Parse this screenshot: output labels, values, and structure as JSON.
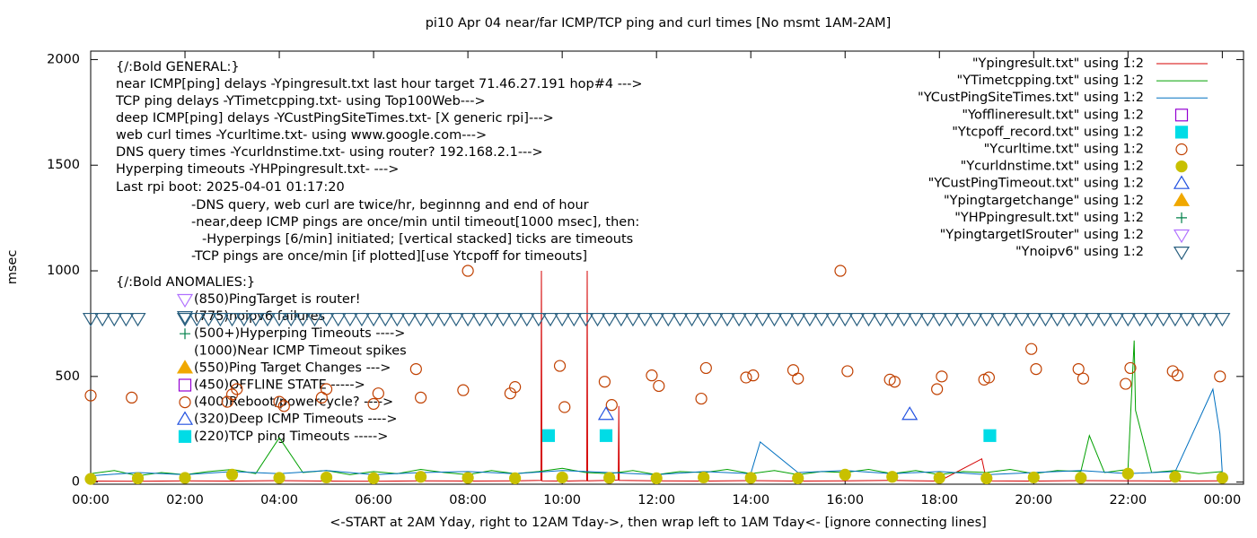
{
  "chart_data": {
    "type": "scatter",
    "title": "pi10 Apr 04  near/far ICMP/TCP ping and curl times [No msmt 1AM-2AM]",
    "x_label": "<-START at 2AM Yday, right to 12AM Tday->, then wrap left to 1AM Tday<- [ignore connecting lines]",
    "y_label": "msec",
    "xlim": [
      0,
      24.45
    ],
    "ylim": [
      -10,
      2040
    ],
    "xticks": [
      {
        "value": 0,
        "label": "00:00"
      },
      {
        "value": 2,
        "label": "02:00"
      },
      {
        "value": 4,
        "label": "04:00"
      },
      {
        "value": 6,
        "label": "06:00"
      },
      {
        "value": 8,
        "label": "08:00"
      },
      {
        "value": 10,
        "label": "10:00"
      },
      {
        "value": 12,
        "label": "12:00"
      },
      {
        "value": 14,
        "label": "14:00"
      },
      {
        "value": 16,
        "label": "16:00"
      },
      {
        "value": 18,
        "label": "18:00"
      },
      {
        "value": 20,
        "label": "20:00"
      },
      {
        "value": 22,
        "label": "22:00"
      },
      {
        "value": 24,
        "label": "00:00"
      }
    ],
    "yticks": [
      0,
      500,
      1000,
      1500,
      2000
    ],
    "legend": "top-right",
    "notes": [
      "{/:Bold GENERAL:}",
      "near ICMP[ping] delays -Ypingresult.txt last hour target 71.46.27.191 hop#4 --->",
      "TCP ping delays -YTimetcpping.txt- using Top100Web--->",
      "deep ICMP[ping] delays -YCustPingSiteTimes.txt- [X generic rpi]--->",
      "web curl times -Ycurltime.txt- using www.google.com--->",
      "DNS query times -Ycurldnstime.txt- using router? 192.168.2.1--->",
      "Hyperping timeouts -YHPpingresult.txt- --->",
      "Last rpi boot: 2025-04-01 01:17:20",
      "-DNS query, web curl are twice/hr, beginnng and end of hour",
      "-near,deep ICMP pings are once/min until timeout[1000 msec], then:",
      "-Hyperpings [6/min] initiated; [vertical stacked] ticks are timeouts",
      "-TCP pings are once/min [if plotted][use Ytcpoff for timeouts]",
      "{/:Bold ANOMALIES:}"
    ],
    "anomalies": [
      "(850)PingTarget is router!",
      "(775)noipv6 failures",
      "(500+)Hyperping Timeouts ---->",
      "(1000)Near ICMP Timeout spikes",
      "(550)Ping Target Changes --->",
      "(450)OFFLINE STATE ----->",
      "(400)Reboot/powercycle? ---->",
      "(320)Deep ICMP Timeouts ---->",
      "(220)TCP ping Timeouts ----->"
    ],
    "series": [
      {
        "name": "\"Ypingresult.txt\" using 1:2",
        "style": "line",
        "color": "#d40000",
        "x": [
          0,
          1,
          2,
          3,
          4,
          5,
          6,
          7,
          8,
          9,
          9.55,
          9.56,
          9.57,
          10,
          10.52,
          10.53,
          10.54,
          11,
          11.19,
          11.2,
          11.21,
          12,
          13,
          14,
          15,
          16,
          17,
          18,
          18.9,
          19,
          20,
          21,
          22,
          23,
          24
        ],
        "values": [
          5,
          4,
          6,
          5,
          7,
          5,
          4,
          6,
          5,
          6,
          8,
          1000,
          6,
          5,
          7,
          1000,
          6,
          8,
          10,
          360,
          8,
          6,
          5,
          7,
          5,
          6,
          8,
          5,
          110,
          6,
          5,
          7,
          6,
          5,
          6
        ]
      },
      {
        "name": "\"YTimetcpping.txt\" using 1:2",
        "style": "line",
        "color": "#00a000",
        "x": [
          0,
          0.5,
          1,
          1.5,
          2,
          2.5,
          3,
          3.5,
          4,
          4.5,
          5,
          5.5,
          6,
          6.5,
          7,
          7.5,
          8,
          8.5,
          9,
          9.5,
          10,
          10.5,
          11,
          11.5,
          12,
          12.5,
          13,
          13.5,
          14,
          14.5,
          15,
          15.5,
          16,
          16.5,
          17,
          17.5,
          18,
          18.5,
          19,
          19.5,
          20,
          20.5,
          21,
          21.18,
          21.5,
          22,
          22.13,
          22.16,
          22.5,
          23,
          23.5,
          24
        ],
        "values": [
          40,
          55,
          30,
          45,
          35,
          50,
          60,
          40,
          210,
          45,
          55,
          35,
          50,
          40,
          60,
          45,
          35,
          55,
          40,
          50,
          65,
          45,
          40,
          55,
          35,
          50,
          45,
          60,
          40,
          55,
          35,
          50,
          45,
          60,
          40,
          55,
          35,
          50,
          45,
          60,
          40,
          55,
          50,
          220,
          45,
          60,
          670,
          340,
          45,
          55,
          40,
          50
        ]
      },
      {
        "name": "\"YCustPingSiteTimes.txt\" using 1:2",
        "style": "line",
        "color": "#0070c0",
        "x": [
          0,
          1,
          2,
          3,
          4,
          5,
          6,
          7,
          8,
          9,
          10,
          11,
          12,
          13,
          14,
          14.2,
          15,
          16,
          17,
          18,
          19,
          20,
          21,
          22,
          23,
          23.8,
          23.95,
          24
        ],
        "values": [
          30,
          45,
          35,
          50,
          40,
          55,
          35,
          45,
          50,
          40,
          55,
          45,
          35,
          50,
          40,
          190,
          45,
          55,
          40,
          50,
          35,
          45,
          55,
          40,
          50,
          440,
          230,
          40
        ]
      },
      {
        "name": "\"Yofflineresult.txt\" using 1:2",
        "style": "points",
        "marker": "square-open",
        "color": "#9400d3",
        "x": [],
        "values": []
      },
      {
        "name": "\"Ytcpoff_record.txt\" using 1:2",
        "style": "points",
        "marker": "square",
        "color": "#00dce6",
        "x": [
          9.71,
          10.93,
          19.07
        ],
        "values": [
          220,
          220,
          220
        ]
      },
      {
        "name": "\"Ycurltime.txt\" using 1:2",
        "style": "points",
        "marker": "circle-open",
        "color": "#c04000",
        "x": [
          0.0,
          0.87,
          2.9,
          3.0,
          3.1,
          4.0,
          4.1,
          4.9,
          5.0,
          6.0,
          6.1,
          6.9,
          7.0,
          7.9,
          8.0,
          8.9,
          9.0,
          9.95,
          10.05,
          10.9,
          11.05,
          11.9,
          12.05,
          12.95,
          13.05,
          13.9,
          14.05,
          14.9,
          15.0,
          15.9,
          16.05,
          16.95,
          17.05,
          17.95,
          18.05,
          18.95,
          19.05,
          19.95,
          20.05,
          20.95,
          21.05,
          21.95,
          22.05,
          22.95,
          23.05,
          23.95
        ],
        "values": [
          410,
          400,
          380,
          415,
          440,
          380,
          360,
          400,
          440,
          370,
          420,
          535,
          400,
          435,
          1000,
          420,
          450,
          550,
          355,
          475,
          365,
          505,
          455,
          395,
          540,
          495,
          505,
          530,
          490,
          1000,
          525,
          485,
          475,
          440,
          500,
          485,
          495,
          630,
          535,
          535,
          490,
          465,
          540,
          525,
          505,
          500
        ]
      },
      {
        "name": "\"Ycurldnstime.txt\" using 1:2",
        "style": "points",
        "marker": "circle",
        "color": "#c8c000",
        "x": [
          0,
          1,
          2,
          3,
          4,
          5,
          6,
          7,
          8,
          9,
          10,
          11,
          12,
          13,
          14,
          15,
          16,
          17,
          18,
          19,
          20,
          21,
          22,
          23,
          24
        ],
        "values": [
          15,
          18,
          20,
          35,
          20,
          22,
          18,
          25,
          20,
          18,
          22,
          20,
          18,
          22,
          20,
          18,
          35,
          25,
          20,
          18,
          22,
          20,
          40,
          25,
          20
        ]
      },
      {
        "name": "\"YCustPingTimeout.txt\" using 1:2",
        "style": "points",
        "marker": "triangle-open",
        "color": "#2050e0",
        "x": [
          10.93,
          17.37
        ],
        "values": [
          320,
          320
        ]
      },
      {
        "name": "\"Ypingtargetchange\" using 1:2",
        "style": "points",
        "marker": "triangle",
        "color": "#f0a800",
        "x": [],
        "values": []
      },
      {
        "name": "\"YHPpingresult.txt\" using 1:2",
        "style": "points",
        "marker": "plus",
        "color": "#00804a",
        "x": [],
        "values": []
      },
      {
        "name": "\"YpingtargetISrouter\" using 1:2",
        "style": "points",
        "marker": "tridown-open",
        "color": "#b070ff",
        "x": [],
        "values": []
      },
      {
        "name": "\"Ynoipv6\" using 1:2",
        "style": "points",
        "marker": "tridown-open",
        "color": "#2a6080",
        "x": [
          0,
          0.25,
          0.5,
          0.75,
          1,
          2,
          2.25,
          2.5,
          2.75,
          3,
          3.25,
          3.5,
          3.75,
          4,
          4.25,
          4.5,
          4.75,
          5,
          5.25,
          5.5,
          5.75,
          6,
          6.25,
          6.5,
          6.75,
          7,
          7.25,
          7.5,
          7.75,
          8,
          8.25,
          8.5,
          8.75,
          9,
          9.25,
          9.5,
          9.75,
          10,
          10.25,
          10.5,
          10.75,
          11,
          11.25,
          11.5,
          11.75,
          12,
          12.25,
          12.5,
          12.75,
          13,
          13.25,
          13.5,
          13.75,
          14,
          14.25,
          14.5,
          14.75,
          15,
          15.25,
          15.5,
          15.75,
          16,
          16.25,
          16.5,
          16.75,
          17,
          17.25,
          17.5,
          17.75,
          18,
          18.25,
          18.5,
          18.75,
          19,
          19.25,
          19.5,
          19.75,
          20,
          20.25,
          20.5,
          20.75,
          21,
          21.25,
          21.5,
          21.75,
          22,
          22.25,
          22.5,
          22.75,
          23,
          23.25,
          23.5,
          23.75,
          24
        ],
        "values": [
          775,
          775,
          775,
          775,
          775,
          775,
          775,
          775,
          775,
          775,
          775,
          775,
          775,
          775,
          775,
          775,
          775,
          775,
          775,
          775,
          775,
          775,
          775,
          775,
          775,
          775,
          775,
          775,
          775,
          775,
          775,
          775,
          775,
          775,
          775,
          775,
          775,
          775,
          775,
          775,
          775,
          775,
          775,
          775,
          775,
          775,
          775,
          775,
          775,
          775,
          775,
          775,
          775,
          775,
          775,
          775,
          775,
          775,
          775,
          775,
          775,
          775,
          775,
          775,
          775,
          775,
          775,
          775,
          775,
          775,
          775,
          775,
          775,
          775,
          775,
          775,
          775,
          775,
          775,
          775,
          775,
          775,
          775,
          775,
          775,
          775,
          775,
          775,
          775,
          775,
          775,
          775,
          775,
          775
        ]
      }
    ]
  }
}
